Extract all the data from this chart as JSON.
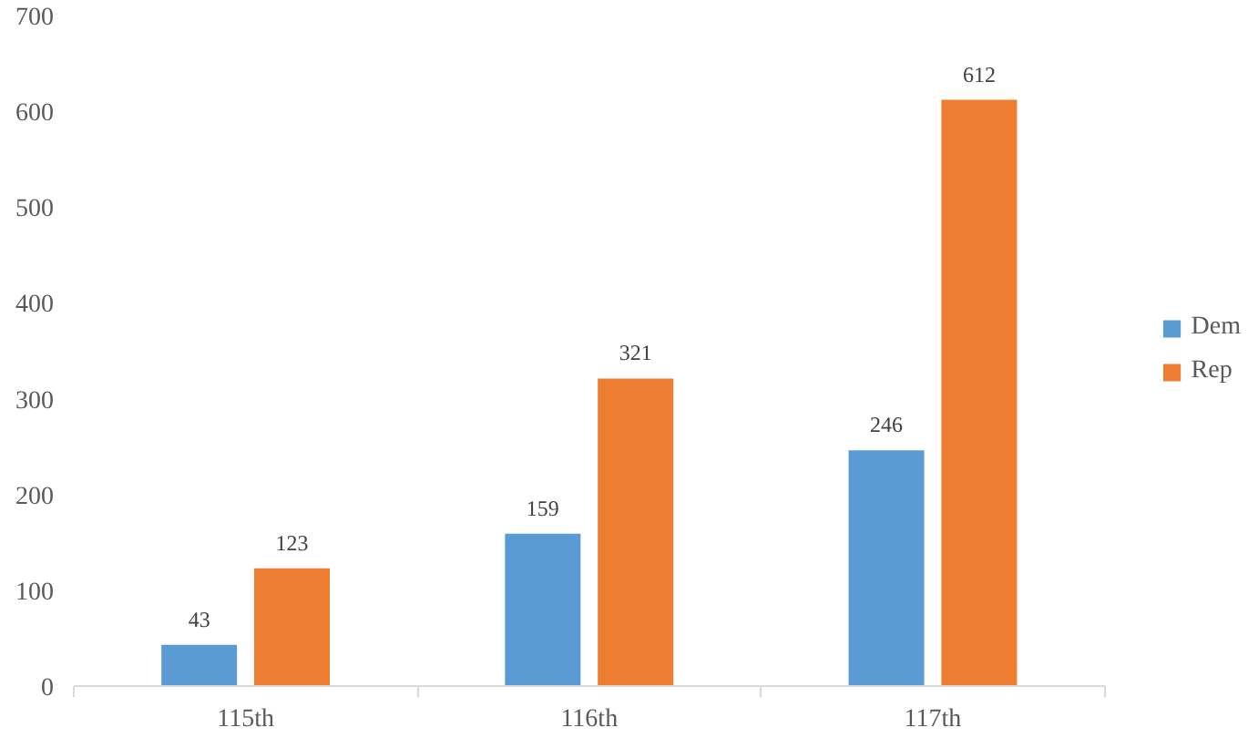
{
  "chart_data": {
    "type": "bar",
    "categories": [
      "115th",
      "116th",
      "117th"
    ],
    "series": [
      {
        "name": "Dem",
        "color": "#5b9bd5",
        "values": [
          43,
          159,
          246
        ]
      },
      {
        "name": "Rep",
        "color": "#ed7d31",
        "values": [
          123,
          321,
          612
        ]
      }
    ],
    "ylim": [
      0,
      700
    ],
    "yticks": [
      0,
      100,
      200,
      300,
      400,
      500,
      600,
      700
    ],
    "grid": false,
    "legend": "right",
    "data_labels": true
  }
}
